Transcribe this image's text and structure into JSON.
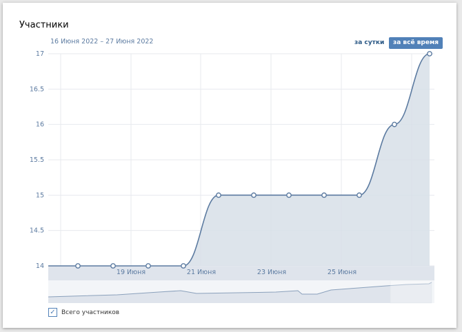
{
  "header": {
    "title": "Участники",
    "date_range": "16 Июня 2022 – 27 Июня 2022"
  },
  "buttons": {
    "day": "за сутки",
    "all_time": "за всё время",
    "active": "all_time"
  },
  "legend": {
    "label": "Всего участников",
    "checked": true
  },
  "chart_data": {
    "type": "area",
    "y_ticks": [
      "14",
      "14.5",
      "15",
      "15.5",
      "16",
      "16.5",
      "17"
    ],
    "ylim": [
      14,
      17
    ],
    "x_ticks": [
      "19 Июня",
      "21 Июня",
      "23 Июня",
      "25 Июня"
    ],
    "grid": true,
    "series": [
      {
        "name": "Всего участников",
        "color": "#5b7aa0",
        "x": [
          "17 Июня",
          "18 Июня",
          "19 Июня",
          "20 Июня",
          "21 Июня",
          "22 Июня",
          "23 Июня",
          "24 Июня",
          "25 Июня",
          "26 Июня",
          "27 Июня"
        ],
        "values": [
          14,
          14,
          14,
          14,
          15,
          15,
          15,
          15,
          15,
          16,
          17
        ]
      }
    ]
  }
}
